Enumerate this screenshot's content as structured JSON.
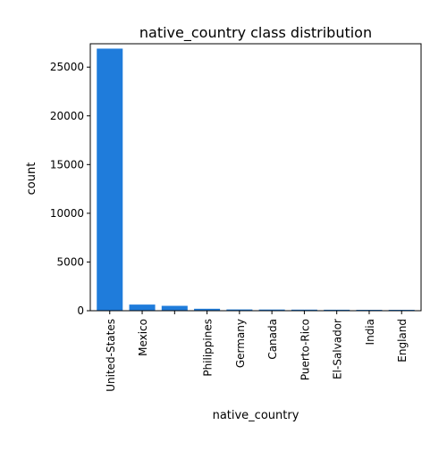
{
  "chart_data": {
    "type": "bar",
    "title": "native_country class distribution",
    "xlabel": "native_country",
    "ylabel": "count",
    "categories": [
      "United-States",
      "Mexico",
      "",
      "Philippines",
      "Germany",
      "Canada",
      "Puerto-Rico",
      "El-Salvador",
      "India",
      "England"
    ],
    "values": [
      26900,
      630,
      500,
      200,
      130,
      120,
      110,
      100,
      90,
      90
    ],
    "ylim": [
      0,
      27400
    ],
    "yticks": [
      0,
      5000,
      10000,
      15000,
      20000,
      25000
    ],
    "bar_color": "#1f7cdb",
    "grid": false,
    "legend": "none"
  }
}
